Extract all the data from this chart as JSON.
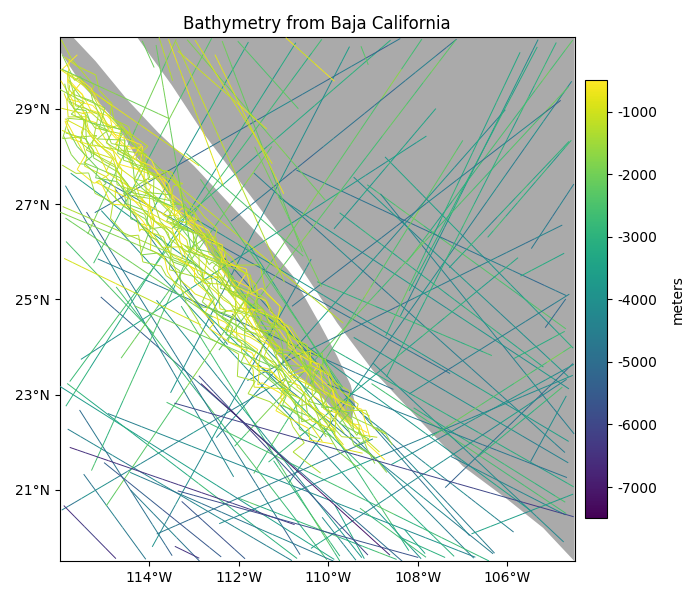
{
  "title": "Bathymetry from Baja California",
  "xlim": [
    -116.0,
    -104.5
  ],
  "ylim": [
    19.5,
    30.5
  ],
  "xticks": [
    -114,
    -112,
    -110,
    -108,
    -106
  ],
  "yticks": [
    21,
    23,
    25,
    27,
    29
  ],
  "colormap": "viridis",
  "vmin": -7500,
  "vmax": -500,
  "cbar_label": "meters",
  "cbar_ticks": [
    -1000,
    -2000,
    -3000,
    -4000,
    -5000,
    -6000,
    -7000
  ],
  "land_color": "#aaaaaa",
  "ocean_color": "#ffffff",
  "fig_width": 7.0,
  "fig_height": 6.0,
  "dpi": 100,
  "baja_lon": [
    -117.2,
    -116.8,
    -116.0,
    -115.2,
    -114.5,
    -113.8,
    -113.0,
    -112.2,
    -111.5,
    -110.8,
    -110.2,
    -109.8,
    -109.5,
    -109.4,
    -109.5,
    -109.8,
    -110.3,
    -110.8,
    -111.3,
    -111.8,
    -112.3,
    -112.8,
    -113.3,
    -113.8,
    -114.3,
    -114.8,
    -115.5,
    -116.2,
    -117.0,
    -117.2
  ],
  "baja_lat": [
    32.5,
    31.8,
    30.8,
    30.0,
    29.2,
    28.5,
    27.8,
    27.0,
    26.3,
    25.5,
    24.5,
    23.8,
    23.2,
    22.8,
    22.4,
    22.6,
    23.1,
    23.5,
    24.0,
    24.8,
    25.5,
    26.2,
    26.8,
    27.5,
    28.0,
    28.8,
    29.5,
    30.5,
    31.5,
    32.5
  ],
  "mainland_lon": [
    -116.0,
    -114.5,
    -113.5,
    -112.8,
    -112.0,
    -111.2,
    -110.5,
    -109.8,
    -109.0,
    -108.0,
    -107.0,
    -106.0,
    -105.2,
    -104.5,
    -104.5,
    -116.0
  ],
  "mainland_lat": [
    32.5,
    30.8,
    29.5,
    28.5,
    27.5,
    26.5,
    25.5,
    24.5,
    23.5,
    22.5,
    21.5,
    20.8,
    20.2,
    19.5,
    32.5,
    32.5
  ]
}
